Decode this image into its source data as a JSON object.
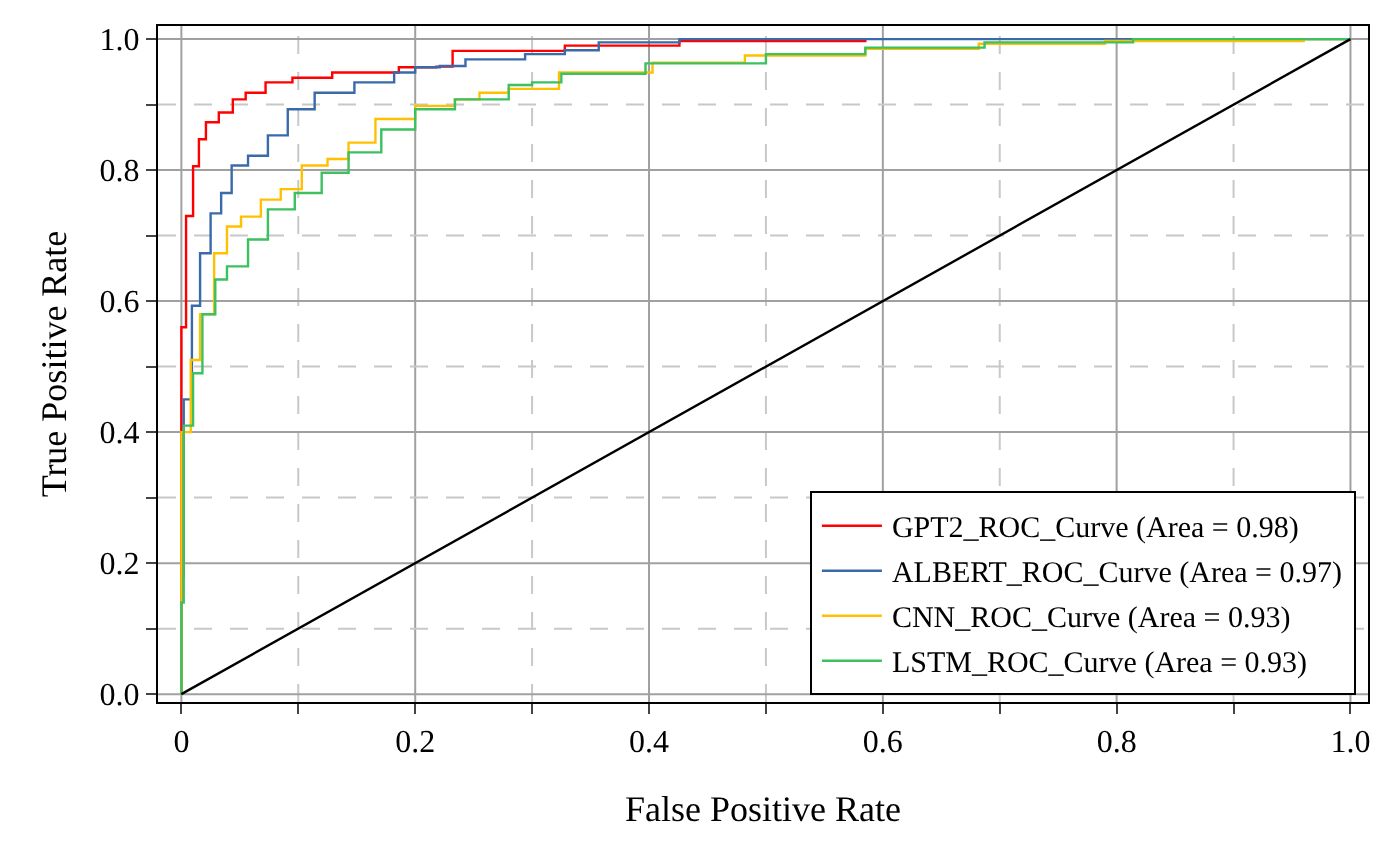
{
  "chart_data": {
    "type": "step",
    "xlabel": "False Positive Rate",
    "ylabel": "True Positive Rate",
    "xlim": [
      -0.02,
      1.015
    ],
    "ylim": [
      -0.012,
      1.02
    ],
    "xticks": [
      0,
      {
        "value": 0.1,
        "label": null
      },
      0.2,
      {
        "value": 0.3,
        "label": null
      },
      0.4,
      {
        "value": 0.5,
        "label": null
      },
      0.6,
      {
        "value": 0.7,
        "label": null
      },
      0.8,
      {
        "value": 0.9,
        "label": null
      },
      {
        "value": 1,
        "label": "1.0"
      }
    ],
    "yticks": [
      {
        "value": 0,
        "label": "0.0"
      },
      {
        "value": 0.1,
        "label": null
      },
      0.2,
      {
        "value": 0.3,
        "label": null
      },
      0.4,
      {
        "value": 0.5,
        "label": null
      },
      0.6,
      {
        "value": 0.7,
        "label": null
      },
      0.8,
      {
        "value": 0.9,
        "label": null
      },
      {
        "value": 1,
        "label": "1.0"
      }
    ],
    "grid": true,
    "legend": "bottom right",
    "marker": "none",
    "line_style": "solid",
    "series": [
      {
        "name": "GPT2_ROC_Curve (Area = 0.98)",
        "color": "#ff0000",
        "x": [
          0,
          0,
          0.001,
          0.004,
          0.01,
          0.015,
          0.021,
          0.032,
          0.044,
          0.055,
          0.072,
          0.095,
          0.129,
          0.186,
          0.218,
          0.232,
          0.328,
          0.426,
          0.585
        ],
        "values": [
          0,
          0.56,
          0.56,
          0.73,
          0.806,
          0.847,
          0.873,
          0.888,
          0.908,
          0.918,
          0.934,
          0.941,
          0.949,
          0.957,
          0.958,
          0.982,
          0.99,
          0.997,
          1
        ]
      },
      {
        "name": "ALBERT_ROC_Curve (Area = 0.97)",
        "color": "#3a6aaa",
        "x": [
          0,
          0,
          0.002,
          0.009,
          0.016,
          0.025,
          0.034,
          0.043,
          0.057,
          0.074,
          0.091,
          0.114,
          0.148,
          0.182,
          0.2,
          0.221,
          0.243,
          0.294,
          0.328,
          0.357,
          0.426,
          1
        ],
        "values": [
          0,
          0.18,
          0.45,
          0.593,
          0.673,
          0.734,
          0.765,
          0.807,
          0.822,
          0.853,
          0.893,
          0.918,
          0.934,
          0.949,
          0.957,
          0.959,
          0.969,
          0.977,
          0.983,
          0.995,
          1,
          1
        ]
      },
      {
        "name": "CNN_ROC_Curve (Area = 0.93)",
        "color": "#ffc000",
        "x": [
          0,
          0,
          0.008,
          0.016,
          0.028,
          0.039,
          0.051,
          0.068,
          0.085,
          0.103,
          0.125,
          0.143,
          0.166,
          0.2,
          0.234,
          0.255,
          0.28,
          0.323,
          0.403,
          0.482,
          0.585,
          0.682,
          0.79,
          0.96,
          1
        ],
        "values": [
          0,
          0.4,
          0.51,
          0.58,
          0.673,
          0.714,
          0.729,
          0.755,
          0.771,
          0.807,
          0.817,
          0.842,
          0.878,
          0.898,
          0.908,
          0.918,
          0.924,
          0.949,
          0.964,
          0.975,
          0.985,
          0.993,
          0.997,
          1,
          1
        ]
      },
      {
        "name": "LSTM_ROC_Curve (Area = 0.93)",
        "color": "#3cc060",
        "x": [
          0,
          0,
          0.002,
          0.01,
          0.018,
          0.029,
          0.039,
          0.057,
          0.074,
          0.097,
          0.12,
          0.143,
          0.171,
          0.2,
          0.234,
          0.28,
          0.3,
          0.325,
          0.397,
          0.5,
          0.585,
          0.687,
          0.814,
          1
        ],
        "values": [
          0,
          0.14,
          0.41,
          0.49,
          0.58,
          0.633,
          0.653,
          0.694,
          0.74,
          0.765,
          0.796,
          0.827,
          0.862,
          0.893,
          0.908,
          0.93,
          0.934,
          0.947,
          0.963,
          0.977,
          0.987,
          0.995,
          1,
          1
        ]
      },
      {
        "type": "line",
        "color": "#000000",
        "x": [
          0,
          1
        ],
        "values": [
          0,
          1
        ]
      }
    ]
  }
}
